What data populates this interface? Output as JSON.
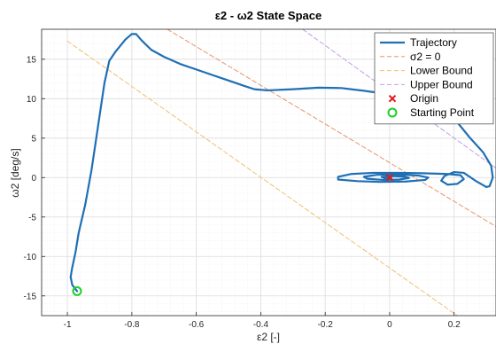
{
  "chart_data": {
    "type": "line",
    "title": "ε2  -  ω2   State  Space",
    "xlabel": "ε2  [-]",
    "ylabel": "ω2  [deg/s]",
    "xlim": [
      -1.08,
      0.33
    ],
    "ylim": [
      -17.5,
      18.8
    ],
    "xticks": [
      -1,
      -0.8,
      -0.6,
      -0.4,
      -0.2,
      0,
      0.2
    ],
    "xtick_labels": [
      "-1",
      "-0.8",
      "-0.6",
      "-0.4",
      "-0.2",
      "0",
      "0.2"
    ],
    "yticks": [
      -15,
      -10,
      -5,
      0,
      5,
      10,
      15
    ],
    "ytick_labels": [
      "-15",
      "-10",
      "-5",
      "0",
      "5",
      "10",
      "15"
    ],
    "grid": true,
    "minor_grid": true,
    "legend_position": "top-right",
    "series": [
      {
        "name": "Trajectory",
        "style": "solid",
        "color": "#1f6fb5",
        "points": [
          [
            -0.97,
            -14.4
          ],
          [
            -0.985,
            -13.6
          ],
          [
            -0.99,
            -12.6
          ],
          [
            -0.985,
            -11.4
          ],
          [
            -0.975,
            -9.5
          ],
          [
            -0.965,
            -7.0
          ],
          [
            -0.945,
            -3.5
          ],
          [
            -0.925,
            1.0
          ],
          [
            -0.905,
            6.5
          ],
          [
            -0.885,
            12.0
          ],
          [
            -0.87,
            14.8
          ],
          [
            -0.85,
            16.0
          ],
          [
            -0.82,
            17.5
          ],
          [
            -0.8,
            18.2
          ],
          [
            -0.787,
            18.2
          ],
          [
            -0.77,
            17.4
          ],
          [
            -0.74,
            16.2
          ],
          [
            -0.7,
            15.3
          ],
          [
            -0.65,
            14.4
          ],
          [
            -0.6,
            13.7
          ],
          [
            -0.55,
            13.0
          ],
          [
            -0.5,
            12.3
          ],
          [
            -0.45,
            11.6
          ],
          [
            -0.42,
            11.2
          ],
          [
            -0.38,
            11.05
          ],
          [
            -0.3,
            11.2
          ],
          [
            -0.22,
            11.4
          ],
          [
            -0.15,
            11.35
          ],
          [
            -0.08,
            11.0
          ],
          [
            -0.01,
            10.6
          ],
          [
            0.06,
            10.4
          ],
          [
            0.12,
            10.0
          ],
          [
            0.17,
            8.8
          ],
          [
            0.21,
            7.0
          ],
          [
            0.25,
            5.0
          ],
          [
            0.29,
            3.2
          ],
          [
            0.315,
            1.5
          ],
          [
            0.32,
            0.0
          ],
          [
            0.31,
            -1.1
          ],
          [
            0.3,
            -1.2
          ],
          [
            0.27,
            -0.5
          ],
          [
            0.23,
            0.6
          ],
          [
            0.2,
            0.7
          ],
          [
            0.17,
            0.2
          ],
          [
            0.16,
            -0.4
          ],
          [
            0.18,
            -0.9
          ],
          [
            0.21,
            -0.8
          ],
          [
            0.23,
            -0.2
          ],
          [
            0.22,
            0.3
          ],
          [
            0.18,
            0.45
          ],
          [
            0.1,
            0.55
          ],
          [
            0.03,
            0.6
          ],
          [
            -0.05,
            0.6
          ],
          [
            -0.12,
            0.45
          ],
          [
            -0.16,
            0.1
          ],
          [
            -0.16,
            -0.25
          ],
          [
            -0.1,
            -0.45
          ],
          [
            -0.03,
            -0.55
          ],
          [
            0.05,
            -0.5
          ],
          [
            0.11,
            -0.3
          ],
          [
            0.12,
            0.0
          ],
          [
            0.09,
            0.25
          ],
          [
            0.03,
            0.4
          ],
          [
            -0.04,
            0.35
          ],
          [
            -0.08,
            0.1
          ],
          [
            -0.07,
            -0.15
          ],
          [
            -0.02,
            -0.3
          ],
          [
            0.03,
            -0.25
          ],
          [
            0.06,
            -0.05
          ],
          [
            0.045,
            0.12
          ],
          [
            0.01,
            0.18
          ],
          [
            -0.025,
            0.08
          ],
          [
            -0.015,
            -0.08
          ],
          [
            0.005,
            -0.06
          ],
          [
            0.0,
            0.0
          ]
        ]
      },
      {
        "name": "σ2  =  0",
        "style": "dashed",
        "color": "#e8956a",
        "points": [
          [
            -0.69,
            18.8
          ],
          [
            0.33,
            -6.2
          ]
        ]
      },
      {
        "name": "Lower Bound",
        "style": "dashed",
        "color": "#f2bf73",
        "points": [
          [
            -1.0,
            17.3
          ],
          [
            0.21,
            -17.5
          ]
        ]
      },
      {
        "name": "Upper Bound",
        "style": "dashed",
        "color": "#c39ee8",
        "points": [
          [
            -0.27,
            18.8
          ],
          [
            0.33,
            1.2
          ]
        ]
      },
      {
        "name": "Origin",
        "style": "marker-x",
        "color": "#e0191c",
        "points": [
          [
            0.0,
            0.0
          ]
        ]
      },
      {
        "name": "Starting Point",
        "style": "marker-circle",
        "color": "#19d02a",
        "points": [
          [
            -0.97,
            -14.4
          ]
        ]
      }
    ]
  }
}
